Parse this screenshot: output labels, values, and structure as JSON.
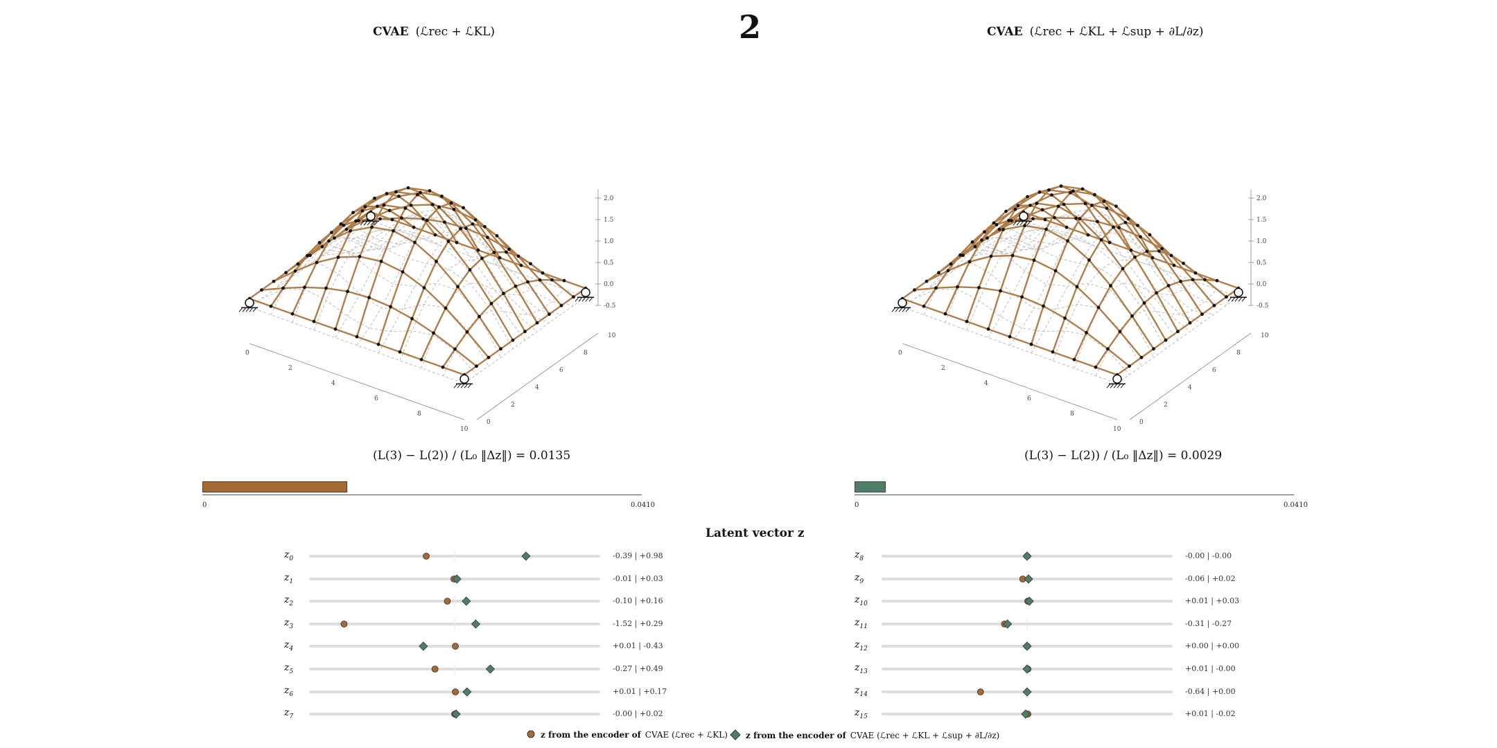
{
  "step_number": "2",
  "colors": {
    "cvae": "#a36a35",
    "cvae_sup": "#4e7e68",
    "track": "#dddddd",
    "mesh_ghost": "#bdbdbd"
  },
  "panels": [
    {
      "title_bold": "CVAE",
      "title_formula": "(ℒrec + ℒKL)",
      "z_ticks": [
        "2.0",
        "1.5",
        "1.0",
        "0.5",
        "0.0",
        "-0.5"
      ],
      "x_ticks": [
        "0",
        "2",
        "4",
        "6",
        "8",
        "10"
      ],
      "y_ticks": [
        "0",
        "2",
        "4",
        "6",
        "8",
        "10"
      ],
      "metric_formula": "(L(3) − L(2)) / (L₀ ‖Δz‖) =",
      "metric_value": "0.0135",
      "bar_value": 0.0135,
      "bar_min_label": "0",
      "bar_max_label": "0.0410",
      "bar_max": 0.041
    },
    {
      "title_bold": "CVAE",
      "title_formula": "(ℒrec + ℒKL + ℒsup + ∂L/∂z)",
      "z_ticks": [
        "2.0",
        "1.5",
        "1.0",
        "0.5",
        "0.0",
        "-0.5"
      ],
      "x_ticks": [
        "0",
        "2",
        "4",
        "6",
        "8",
        "10"
      ],
      "y_ticks": [
        "0",
        "2",
        "4",
        "6",
        "8",
        "10"
      ],
      "metric_formula": "(L(3) − L(2)) / (L₀ ‖Δz‖) =",
      "metric_value": "0.0029",
      "bar_value": 0.0029,
      "bar_min_label": "0",
      "bar_max_label": "0.0410",
      "bar_max": 0.041
    }
  ],
  "latent_title": "Latent vector  z",
  "chart_data": {
    "type": "scatter",
    "title": "Latent vector  z",
    "xlim": [
      -2,
      2
    ],
    "categories": [
      "z0",
      "z1",
      "z2",
      "z3",
      "z4",
      "z5",
      "z6",
      "z7",
      "z8",
      "z9",
      "z10",
      "z11",
      "z12",
      "z13",
      "z14",
      "z15"
    ],
    "series": [
      {
        "name": "z from the encoder of CVAE (ℒrec + ℒKL)",
        "values": [
          -0.39,
          -0.01,
          -0.1,
          -1.52,
          0.01,
          -0.27,
          0.01,
          -0.0,
          -0.0,
          -0.06,
          0.01,
          -0.31,
          0.0,
          0.01,
          -0.64,
          0.01
        ]
      },
      {
        "name": "z from the encoder of CVAE (ℒrec + ℒKL + ℒsup + ∂L/∂z)",
        "values": [
          0.98,
          0.03,
          0.16,
          0.29,
          -0.43,
          0.49,
          0.17,
          0.02,
          -0.0,
          0.02,
          0.03,
          -0.27,
          0.0,
          -0.0,
          0.0,
          -0.02
        ]
      }
    ],
    "value_labels": [
      "-0.39 | +0.98",
      "-0.01 | +0.03",
      "-0.10 | +0.16",
      "-1.52 | +0.29",
      "+0.01 | -0.43",
      "-0.27 | +0.49",
      "+0.01 | +0.17",
      "-0.00 | +0.02",
      "-0.00 | -0.00",
      "-0.06 | +0.02",
      "+0.01 | +0.03",
      "-0.31 | -0.27",
      "+0.00 | +0.00",
      "+0.01 | -0.00",
      "-0.64 | +0.00",
      "+0.01 | -0.02"
    ]
  },
  "legend": [
    {
      "label_bold": "z from the encoder of",
      "label_rest": "CVAE  (ℒrec + ℒKL)",
      "marker": "circle"
    },
    {
      "label_bold": "z from the encoder of",
      "label_rest": "CVAE  (ℒrec + ℒKL + ℒsup + ∂L/∂z)",
      "marker": "diamond"
    }
  ]
}
